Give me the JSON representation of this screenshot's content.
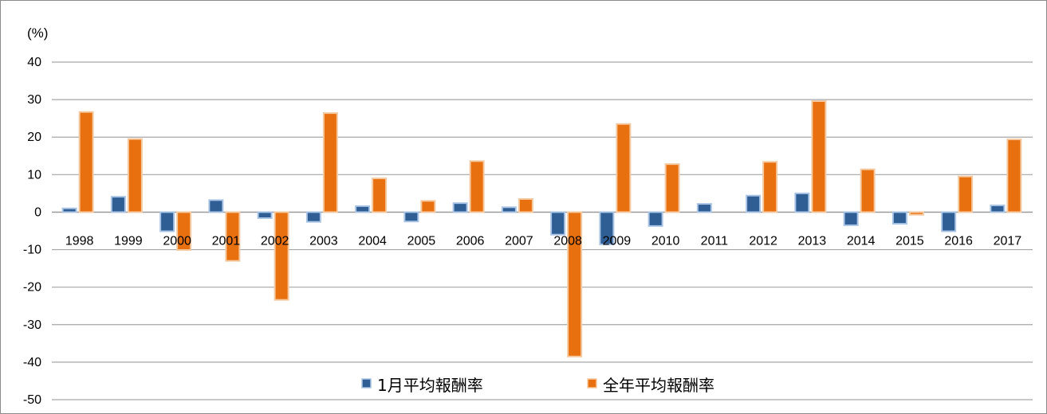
{
  "chart_data": {
    "type": "bar",
    "ylabel": "(%)",
    "ylim": [
      -50,
      40
    ],
    "yticks": [
      40,
      30,
      20,
      10,
      0,
      -10,
      -20,
      -30,
      -40,
      -50
    ],
    "grid": true,
    "legend_position": "bottom",
    "categories": [
      "1998",
      "1999",
      "2000",
      "2001",
      "2002",
      "2003",
      "2004",
      "2005",
      "2006",
      "2007",
      "2008",
      "2009",
      "2010",
      "2011",
      "2012",
      "2013",
      "2014",
      "2015",
      "2016",
      "2017"
    ],
    "series": [
      {
        "name": "1月平均報酬率",
        "color": "#2e5e94",
        "edge": "#a9c4e4",
        "values": [
          1.0,
          4.1,
          -5.1,
          3.2,
          -1.6,
          -2.6,
          1.6,
          -2.5,
          2.4,
          1.3,
          -6.0,
          -8.6,
          -3.7,
          2.2,
          4.4,
          5.0,
          -3.5,
          -3.1,
          -5.1,
          1.8
        ]
      },
      {
        "name": "全年平均報酬率",
        "color": "#e8700f",
        "edge": "#f5c9a0",
        "values": [
          26.7,
          19.5,
          -10.1,
          -13.0,
          -23.4,
          26.4,
          9.0,
          3.0,
          13.6,
          3.5,
          -38.5,
          23.5,
          12.8,
          0.0,
          13.4,
          29.6,
          11.4,
          -0.7,
          9.5,
          19.4
        ]
      }
    ]
  }
}
